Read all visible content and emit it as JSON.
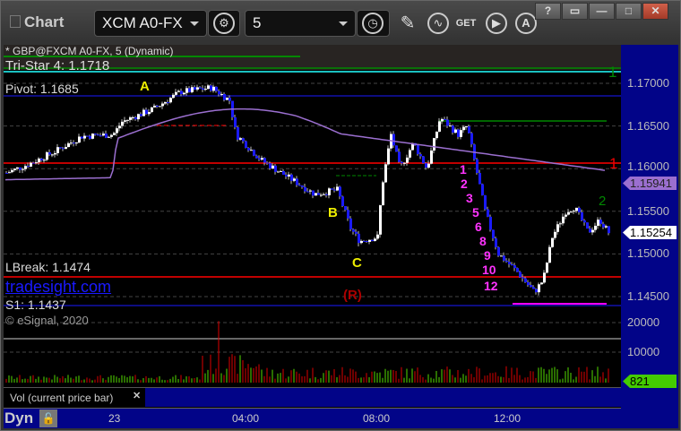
{
  "window": {
    "title": "Chart",
    "help": "?",
    "minimize": "—",
    "maximize": "□",
    "close": "✕"
  },
  "toolbar": {
    "symbol": "XCM A0-FX",
    "interval": "5",
    "icons": [
      "settings-icon",
      "clock-icon",
      "pencil-icon",
      "study-icon",
      "get-icon",
      "play-icon",
      "alert-icon"
    ],
    "get_label": "GET"
  },
  "chart": {
    "header": "* GBP@FXCM A0-FX, 5 (Dynamic)",
    "tristar": "Tri-Star 4: 1.1718",
    "pivot": "Pivot: 1.1685",
    "lbreak": "LBreak: 1.1474",
    "s1": "S1: 1.1437",
    "watermark": "tradesight.com",
    "copyright": "© eSignal, 2020",
    "markers": {
      "a": "A",
      "b": "B",
      "c": "C",
      "r": "(R)",
      "red1": "1",
      "green1": "1",
      "green2": "2"
    },
    "count_labels": [
      "1",
      "2",
      "3",
      "5",
      "6",
      "8",
      "9",
      "10",
      "12"
    ],
    "price_axis": [
      "1.17000",
      "1.16500",
      "1.16000",
      "1.15500",
      "1.15000",
      "1.14500"
    ],
    "ma_value": "1.15941",
    "last_price": "1.15254",
    "volume_axis": [
      "20000",
      "10000"
    ],
    "last_volume": "821",
    "volume_study": "Vol (current price bar)",
    "time_axis": [
      "23",
      "04:00",
      "08:00",
      "12:00"
    ],
    "mode": "Dyn",
    "colors": {
      "up": "#ffffff",
      "down": "#1a1aff",
      "ma": "#9b6fd0",
      "resistance": "#ff0000",
      "count": "#ff33ff",
      "vol_up": "#55dd00",
      "vol_down": "#dd0000"
    }
  }
}
